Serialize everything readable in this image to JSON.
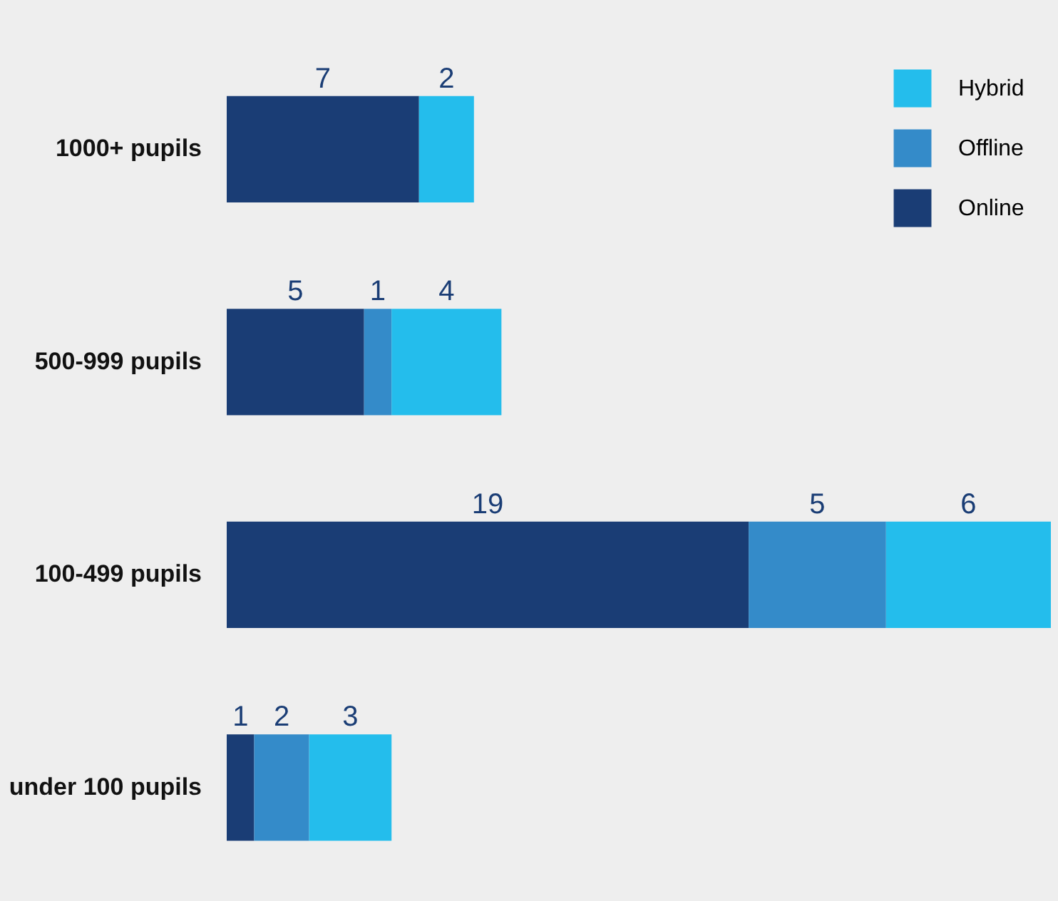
{
  "chart_data": {
    "type": "bar",
    "orientation": "horizontal",
    "stacked": true,
    "data_labels": true,
    "legend": "top right",
    "categories": [
      "1000+ pupils",
      "500-999 pupils",
      "100-499 pupils",
      "under 100 pupils"
    ],
    "series": [
      {
        "name": "Online",
        "color": "#1a3d75",
        "values": [
          7,
          5,
          19,
          1
        ]
      },
      {
        "name": "Offline",
        "color": "#348bc9",
        "values": [
          null,
          1,
          5,
          2
        ]
      },
      {
        "name": "Hybrid",
        "color": "#24bdec",
        "values": [
          2,
          4,
          6,
          3
        ]
      }
    ]
  }
}
